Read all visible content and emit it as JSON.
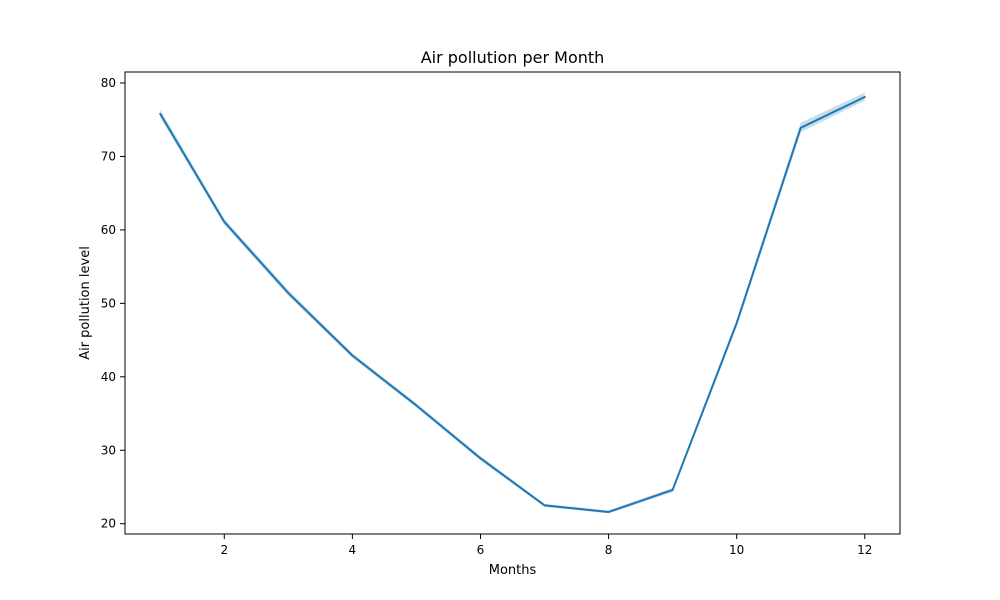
{
  "chart_data": {
    "type": "line",
    "title": "Air pollution per Month",
    "xlabel": "Months",
    "ylabel": "Air pollution level",
    "xlim": [
      0.45,
      12.55
    ],
    "ylim": [
      18.6,
      81.5
    ],
    "xticks": [
      2,
      4,
      6,
      8,
      10,
      12
    ],
    "yticks": [
      20,
      30,
      40,
      50,
      60,
      70,
      80
    ],
    "grid": false,
    "colors": {
      "line": "#1f77b4",
      "band": "#1f77b4"
    },
    "series": [
      {
        "x": [
          1,
          2,
          3,
          4,
          5,
          6,
          7,
          8,
          9,
          10,
          11,
          12
        ],
        "y": [
          75.8,
          61.1,
          51.4,
          42.9,
          36.1,
          28.9,
          22.5,
          21.6,
          24.6,
          47.3,
          73.9,
          78.1
        ],
        "ci_low": [
          75.3,
          60.7,
          51.0,
          42.6,
          35.8,
          28.6,
          22.3,
          21.4,
          24.3,
          46.8,
          73.3,
          77.6
        ],
        "ci_high": [
          76.4,
          61.5,
          51.8,
          43.2,
          36.4,
          29.2,
          22.7,
          21.8,
          24.9,
          47.8,
          74.6,
          78.7
        ]
      }
    ]
  }
}
